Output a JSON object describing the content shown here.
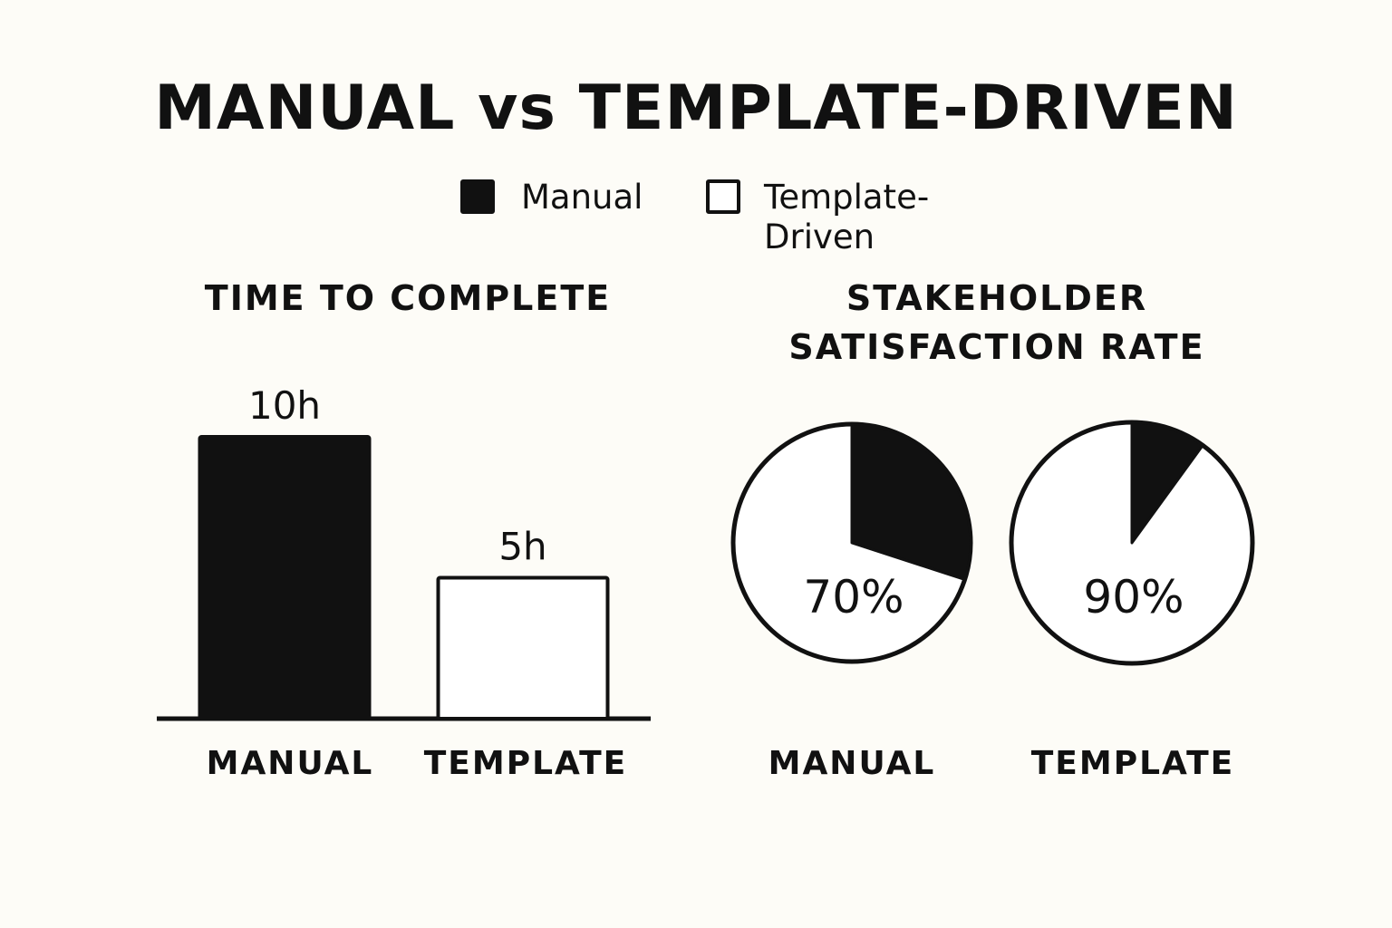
{
  "title": "MANUAL vs TEMPLATE-DRIVEN",
  "legend": [
    {
      "label": "Manual",
      "fill": "#111111"
    },
    {
      "label": "Template-Driven",
      "fill": "#ffffff"
    }
  ],
  "colors": {
    "ink": "#111111",
    "background": "#fdfcf7",
    "hollow": "#ffffff"
  },
  "chart_data": [
    {
      "type": "bar",
      "title": "TIME TO COMPLETE",
      "categories": [
        "MANUAL",
        "TEMPLATE"
      ],
      "values": [
        10,
        5
      ],
      "data_labels": [
        "10h",
        "5h"
      ],
      "unit": "h",
      "fills": [
        "#111111",
        "#ffffff"
      ],
      "ylim": [
        0,
        10
      ],
      "grid": false
    },
    {
      "type": "pie",
      "title_lines": [
        "STAKEHOLDER",
        "SATISFACTION RATE"
      ],
      "categories": [
        "MANUAL",
        "TEMPLATE"
      ],
      "values": [
        70,
        90
      ],
      "data_labels": [
        "70%",
        "90%"
      ],
      "unit": "%"
    }
  ]
}
